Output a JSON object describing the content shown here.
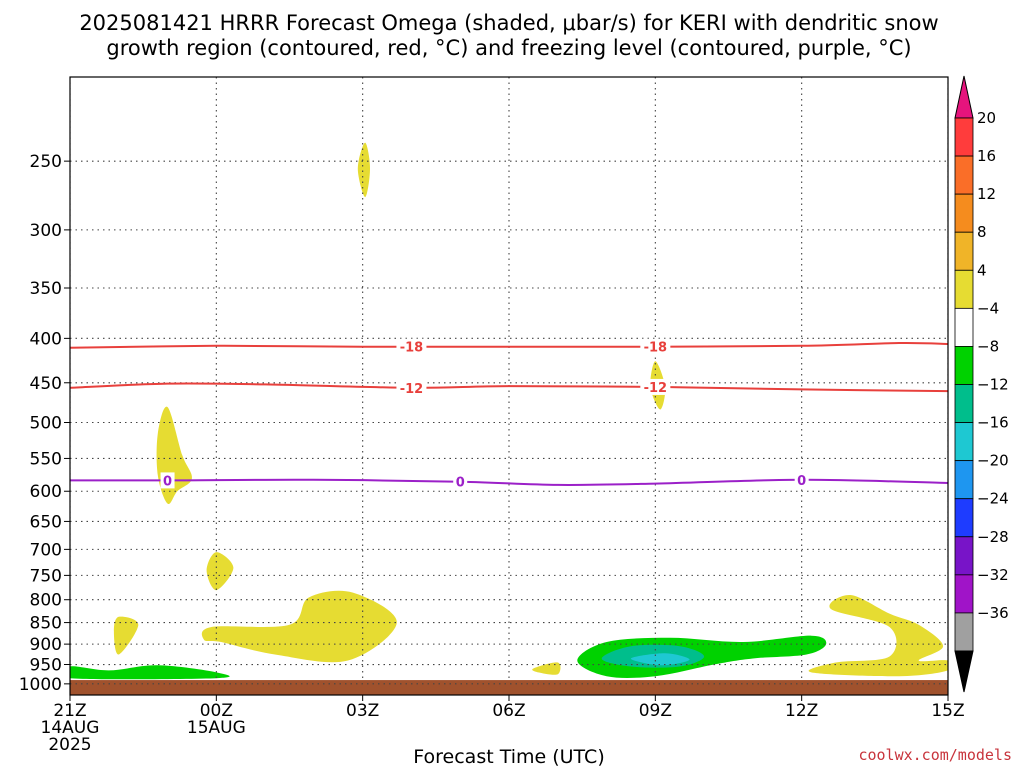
{
  "header": {
    "title_line1": "2025081421 HRRR Forecast Omega (shaded, μbar/s) for KERI with dendritic snow",
    "title_line2": "growth region (contoured, red, °C) and freezing level (contoured, purple, °C)"
  },
  "footer": {
    "xlabel": "Forecast Time (UTC)",
    "credit": "coolwx.com/models"
  },
  "chart_data": {
    "type": "heatmap",
    "title": "2025081421 HRRR Forecast Omega (shaded, μbar/s) for KERI with dendritic snow growth region (contoured, red, °C) and freezing level (contoured, purple, °C)",
    "xlabel": "Forecast Time (UTC)",
    "ylabel": "",
    "x_range_hours": [
      0,
      18
    ],
    "y_range_hpa": [
      1030,
      200
    ],
    "y_scale": "log-pressure",
    "grid": true,
    "x_ticks": [
      {
        "hour": 0,
        "lines": [
          "21Z",
          "14AUG",
          "2025"
        ]
      },
      {
        "hour": 3,
        "lines": [
          "00Z",
          "15AUG"
        ]
      },
      {
        "hour": 6,
        "lines": [
          "03Z"
        ]
      },
      {
        "hour": 9,
        "lines": [
          "06Z"
        ]
      },
      {
        "hour": 12,
        "lines": [
          "09Z"
        ]
      },
      {
        "hour": 15,
        "lines": [
          "12Z"
        ]
      },
      {
        "hour": 18,
        "lines": [
          "15Z"
        ]
      }
    ],
    "y_ticks": [
      250,
      300,
      350,
      400,
      450,
      500,
      550,
      600,
      650,
      700,
      750,
      800,
      850,
      900,
      950,
      1000
    ],
    "surface_pressure_hpa": 990,
    "colors": {
      "ground": "#a0522d",
      "dendritic_contour": "#e8403c",
      "freezing_contour": "#9b20c8",
      "omega_pos_4_8": "#e6dc32",
      "omega_neg_4_8": "#00d200",
      "omega_neg_8_12": "#00be8c",
      "omega_neg_12_16": "#1ec8d2"
    },
    "contours": [
      {
        "name": "-18",
        "color": "#e8403c",
        "points": [
          [
            0,
            410
          ],
          [
            3,
            408
          ],
          [
            6,
            409
          ],
          [
            9,
            409
          ],
          [
            12,
            409
          ],
          [
            15,
            408
          ],
          [
            17,
            405
          ],
          [
            18,
            406
          ]
        ],
        "labels": [
          [
            7,
            409
          ],
          [
            12,
            409
          ]
        ]
      },
      {
        "name": "-12",
        "color": "#e8403c",
        "points": [
          [
            0,
            456
          ],
          [
            2,
            451
          ],
          [
            4,
            452
          ],
          [
            7,
            456
          ],
          [
            9,
            454
          ],
          [
            12,
            455
          ],
          [
            15,
            458
          ],
          [
            18,
            460
          ]
        ],
        "labels": [
          [
            7,
            456
          ],
          [
            12,
            455
          ]
        ]
      },
      {
        "name": "0",
        "color": "#9b20c8",
        "points": [
          [
            0,
            583
          ],
          [
            2,
            583
          ],
          [
            5,
            582
          ],
          [
            8,
            585
          ],
          [
            10,
            590
          ],
          [
            12,
            588
          ],
          [
            15,
            582
          ],
          [
            18,
            587
          ]
        ],
        "labels": [
          [
            2,
            583
          ],
          [
            8,
            585
          ],
          [
            15,
            582
          ]
        ]
      }
    ],
    "shaded_regions": [
      {
        "level": "4 to 8",
        "color": "#e6dc32",
        "points": [
          [
            5.9,
            255
          ],
          [
            6.05,
            238
          ],
          [
            6.15,
            255
          ],
          [
            6.05,
            275
          ]
        ]
      },
      {
        "level": "4 to 8",
        "color": "#e6dc32",
        "points": [
          [
            1.8,
            575
          ],
          [
            1.8,
            515
          ],
          [
            2.0,
            480
          ],
          [
            2.3,
            545
          ],
          [
            2.5,
            580
          ],
          [
            2.2,
            600
          ],
          [
            2.0,
            620
          ]
        ]
      },
      {
        "level": "4 to 8",
        "color": "#e6dc32",
        "points": [
          [
            11.9,
            455
          ],
          [
            12,
            425
          ],
          [
            12.2,
            455
          ],
          [
            12.1,
            483
          ]
        ]
      },
      {
        "level": "4 to 8",
        "color": "#e6dc32",
        "points": [
          [
            2.8,
            740
          ],
          [
            3.0,
            705
          ],
          [
            3.35,
            735
          ],
          [
            3.0,
            780
          ]
        ]
      },
      {
        "level": "4 to 8",
        "color": "#e6dc32",
        "points": [
          [
            0.9,
            870
          ],
          [
            1.0,
            837
          ],
          [
            1.4,
            855
          ],
          [
            1.0,
            925
          ]
        ]
      },
      {
        "level": "4 to 8",
        "color": "#e6dc32",
        "points": [
          [
            2.75,
            890
          ],
          [
            2.9,
            860
          ],
          [
            4.5,
            855
          ],
          [
            4.9,
            795
          ],
          [
            5.8,
            785
          ],
          [
            6.7,
            850
          ],
          [
            5.7,
            940
          ],
          [
            4.2,
            925
          ],
          [
            3.1,
            895
          ]
        ]
      },
      {
        "level": "4 to 8",
        "color": "#e6dc32",
        "points": [
          [
            9.5,
            960
          ],
          [
            10.0,
            945
          ],
          [
            10.0,
            975
          ],
          [
            9.6,
            970
          ]
        ]
      },
      {
        "level": "4 to 8",
        "color": "#e6dc32",
        "points": [
          [
            15.6,
            820
          ],
          [
            16.0,
            790
          ],
          [
            16.8,
            830
          ],
          [
            17.4,
            855
          ],
          [
            17.9,
            905
          ],
          [
            17.4,
            940
          ],
          [
            18,
            940
          ],
          [
            18,
            965
          ],
          [
            17.0,
            980
          ],
          [
            15.2,
            970
          ],
          [
            15.7,
            945
          ],
          [
            16.8,
            930
          ],
          [
            16.8,
            860
          ]
        ]
      },
      {
        "level": "-4 to -8",
        "color": "#00d200",
        "points": [
          [
            0,
            955
          ],
          [
            0.8,
            965
          ],
          [
            1.8,
            952
          ],
          [
            3.0,
            970
          ],
          [
            3.0,
            985
          ],
          [
            0,
            985
          ]
        ]
      },
      {
        "level": "-4 to -8",
        "color": "#00d200",
        "points": [
          [
            10.4,
            940
          ],
          [
            11.0,
            895
          ],
          [
            12.3,
            885
          ],
          [
            13.8,
            895
          ],
          [
            15.2,
            880
          ],
          [
            15.5,
            900
          ],
          [
            15.1,
            925
          ],
          [
            14.0,
            935
          ],
          [
            13.2,
            950
          ],
          [
            12.0,
            980
          ],
          [
            11.0,
            980
          ]
        ]
      },
      {
        "level": "-8 to -12",
        "color": "#00be8c",
        "points": [
          [
            10.9,
            935
          ],
          [
            11.5,
            905
          ],
          [
            12.5,
            905
          ],
          [
            13.0,
            930
          ],
          [
            12.5,
            955
          ],
          [
            11.5,
            955
          ]
        ]
      },
      {
        "level": "-12 to -16",
        "color": "#1ec8d2",
        "points": [
          [
            11.5,
            935
          ],
          [
            12.2,
            922
          ],
          [
            12.7,
            938
          ],
          [
            12.1,
            952
          ]
        ]
      }
    ],
    "colorbar": {
      "labels": [
        "20",
        "16",
        "12",
        "8",
        "4",
        "−4",
        "−8",
        "−12",
        "−16",
        "−20",
        "−24",
        "−28",
        "−32",
        "−36"
      ],
      "colors": [
        "#ff3c3c",
        "#fa6e28",
        "#f58c1e",
        "#f0b428",
        "#e6dc32",
        "#ffffff",
        "#00d200",
        "#00be8c",
        "#1ec8d2",
        "#1e96f0",
        "#1e3cff",
        "#7814c8",
        "#a014c8",
        "#a0a0a0"
      ],
      "top_color": "#e6147d",
      "bottom_color": "#000000"
    }
  }
}
